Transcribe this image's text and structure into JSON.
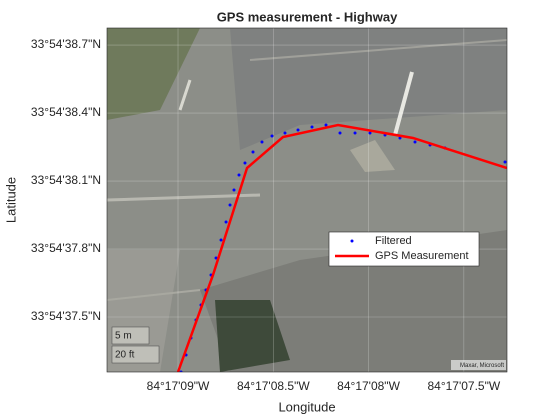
{
  "chart_data": {
    "type": "line",
    "title": "GPS measurement - Highway",
    "xlabel": "Longitude",
    "ylabel": "Latitude",
    "xlim": [
      -84.2859368,
      -84.2853538
    ],
    "ylim": [
      33.9103493,
      33.9107709
    ],
    "xticks": [
      {
        "value": -84.2858333,
        "label": "84°17'09\"W"
      },
      {
        "value": -84.2856944,
        "label": "84°17'08.5\"W"
      },
      {
        "value": -84.2855556,
        "label": "84°17'08\"W"
      },
      {
        "value": -84.2854167,
        "label": "84°17'07.5\"W"
      }
    ],
    "yticks": [
      {
        "value": 33.9104167,
        "label": "33°54'37.5\"N"
      },
      {
        "value": 33.9105,
        "label": "33°54'37.8\"N"
      },
      {
        "value": 33.9105833,
        "label": "33°54'38.1\"N"
      },
      {
        "value": 33.9106667,
        "label": "33°54'38.4\"N"
      },
      {
        "value": 33.91075,
        "label": "33°54'38.7\"N"
      }
    ],
    "grid": true,
    "legend_location": "east",
    "series": [
      {
        "name": "Filtered",
        "color": "#0000ff",
        "style": "dots",
        "x": [
          -84.2858289,
          -84.2858216,
          -84.2858144,
          -84.2858071,
          -84.2857998,
          -84.2857925,
          -84.2857852,
          -84.2857779,
          -84.2857706,
          -84.2857633,
          -84.2857575,
          -84.2857517,
          -84.2857444,
          -84.2857357,
          -84.285724,
          -84.2857109,
          -84.2856963,
          -84.2856774,
          -84.2856584,
          -84.285638,
          -84.2856176,
          -84.2855972,
          -84.2855753,
          -84.2855535,
          -84.2855316,
          -84.2855098,
          -84.2854879,
          -84.285466,
          -84.2854442,
          -84.2853567
        ],
        "values": [
          33.9103493,
          33.9103701,
          33.910391,
          33.910413,
          33.9104314,
          33.9104498,
          33.9104682,
          33.910489,
          33.9105111,
          33.9105331,
          33.910554,
          33.9105723,
          33.9105907,
          33.9106054,
          33.9106189,
          33.9106312,
          33.9106385,
          33.9106422,
          33.9106459,
          33.9106495,
          33.910652,
          33.9106422,
          33.9106422,
          33.9106422,
          33.9106397,
          33.9106361,
          33.9106312,
          33.9106275,
          33.9106238,
          33.9106067
        ]
      },
      {
        "name": "GPS Measurement",
        "color": "#ff0000",
        "style": "line",
        "x": [
          -84.2858333,
          -84.2857823,
          -84.2857327,
          -84.2856803,
          -84.2856001,
          -84.2854908,
          -84.2853538
        ],
        "values": [
          33.9103493,
          33.9104682,
          33.9105993,
          33.9106373,
          33.910652,
          33.9106361,
          33.9105993
        ]
      }
    ],
    "scale_bar": [
      "5 m",
      "20 ft"
    ],
    "attribution": "Maxar, Microsoft"
  }
}
